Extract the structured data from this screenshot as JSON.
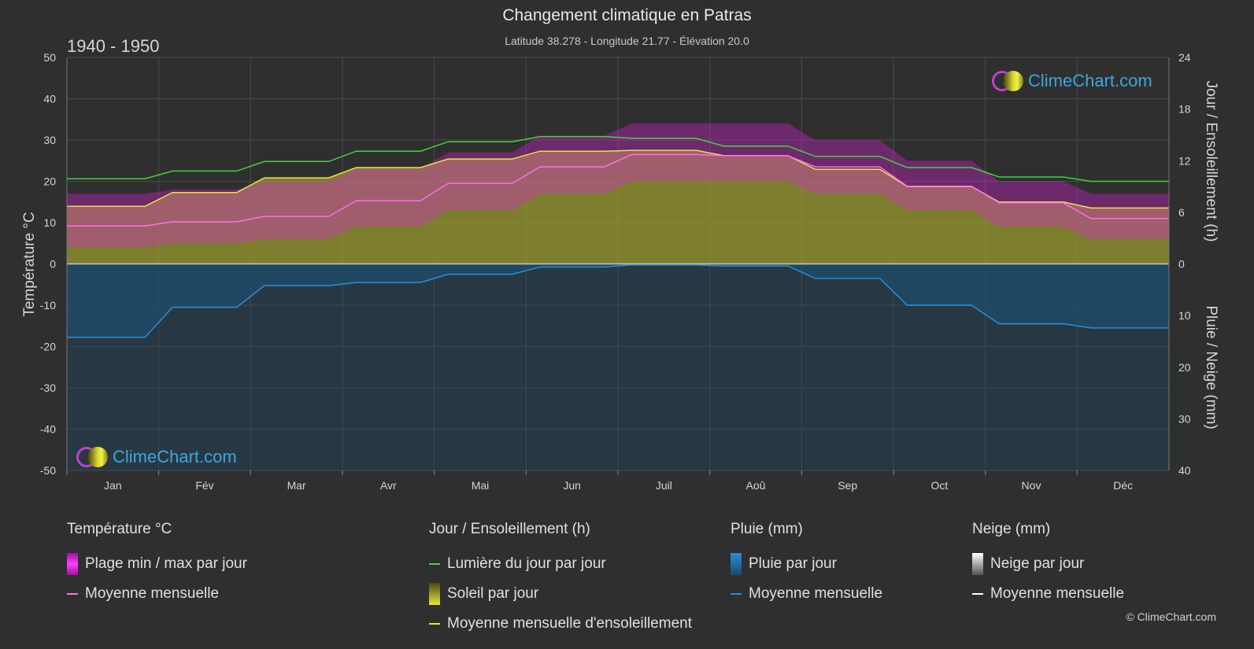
{
  "header": {
    "title": "Changement climatique en Patras",
    "subtitle": "Latitude 38.278 - Longitude 21.77 - Élévation 20.0",
    "period": "1940 - 1950"
  },
  "axes": {
    "left_label": "Température °C",
    "right_top_label": "Jour / Ensoleillement (h)",
    "right_bottom_label": "Pluie / Neige (mm)"
  },
  "logo_text": "ClimeChart.com",
  "copyright": "© ClimeChart.com",
  "legend": {
    "temperature": {
      "head": "Température °C",
      "range": "Plage min / max par jour",
      "mean": "Moyenne mensuelle"
    },
    "sun": {
      "head": "Jour / Ensoleillement (h)",
      "daylight": "Lumière du jour par jour",
      "sunshine": "Soleil par jour",
      "sun_mean": "Moyenne mensuelle d'ensoleillement"
    },
    "rain": {
      "head": "Pluie (mm)",
      "daily": "Pluie par jour",
      "mean": "Moyenne mensuelle"
    },
    "snow": {
      "head": "Neige (mm)",
      "daily": "Neige par jour",
      "mean": "Moyenne mensuelle"
    }
  },
  "colors": {
    "daylight": "#3fd43f",
    "sunshine_mean": "#e6e63a",
    "temp_mean": "#ff6fe8",
    "temp_range": "#e020e0",
    "rain": "#2a8fd8",
    "snow": "#ffffff",
    "sunshine_fill": "#9a9a30"
  },
  "chart_data": {
    "type": "area",
    "months": [
      "Jan",
      "Fév",
      "Mar",
      "Avr",
      "Mai",
      "Jun",
      "Juil",
      "Aoû",
      "Sep",
      "Oct",
      "Nov",
      "Déc"
    ],
    "temp_ticks": [
      50,
      40,
      30,
      20,
      10,
      0,
      -10,
      -20,
      -30,
      -40,
      -50
    ],
    "sun_ticks": [
      24,
      18,
      12,
      6,
      0
    ],
    "precip_ticks": [
      10,
      20,
      30,
      40
    ],
    "ylim_temp": [
      -50,
      50
    ],
    "ylim_hours": [
      0,
      24
    ],
    "ylim_precip_mm": [
      0,
      40
    ],
    "series": [
      {
        "name": "Lumière du jour par jour",
        "unit": "h",
        "values": [
          9.9,
          10.8,
          11.9,
          13.1,
          14.2,
          14.8,
          14.6,
          13.7,
          12.5,
          11.2,
          10.1,
          9.6
        ]
      },
      {
        "name": "Moyenne mensuelle d'ensoleillement",
        "unit": "h",
        "values": [
          6.7,
          8.3,
          10.0,
          11.2,
          12.2,
          13.1,
          13.2,
          12.6,
          11.0,
          9.0,
          7.2,
          6.5
        ]
      },
      {
        "name": "Moyenne mensuelle",
        "unit": "°C",
        "values": [
          9.2,
          10.2,
          11.5,
          15.3,
          19.5,
          23.5,
          26.5,
          26.2,
          23.5,
          18.8,
          14.8,
          11.0
        ]
      },
      {
        "name": "Moyenne mensuelle",
        "unit": "mm",
        "values": [
          14.2,
          8.4,
          4.2,
          3.6,
          2.0,
          0.6,
          0.2,
          0.4,
          2.8,
          8.0,
          11.6,
          12.4
        ]
      }
    ],
    "temp_range_max": [
      17,
      18,
      20,
      23,
      27,
      31,
      34,
      34,
      30,
      25,
      20,
      17
    ],
    "temp_range_min": [
      4,
      5,
      6,
      9,
      13,
      17,
      20,
      20,
      17,
      13,
      9,
      6
    ]
  }
}
